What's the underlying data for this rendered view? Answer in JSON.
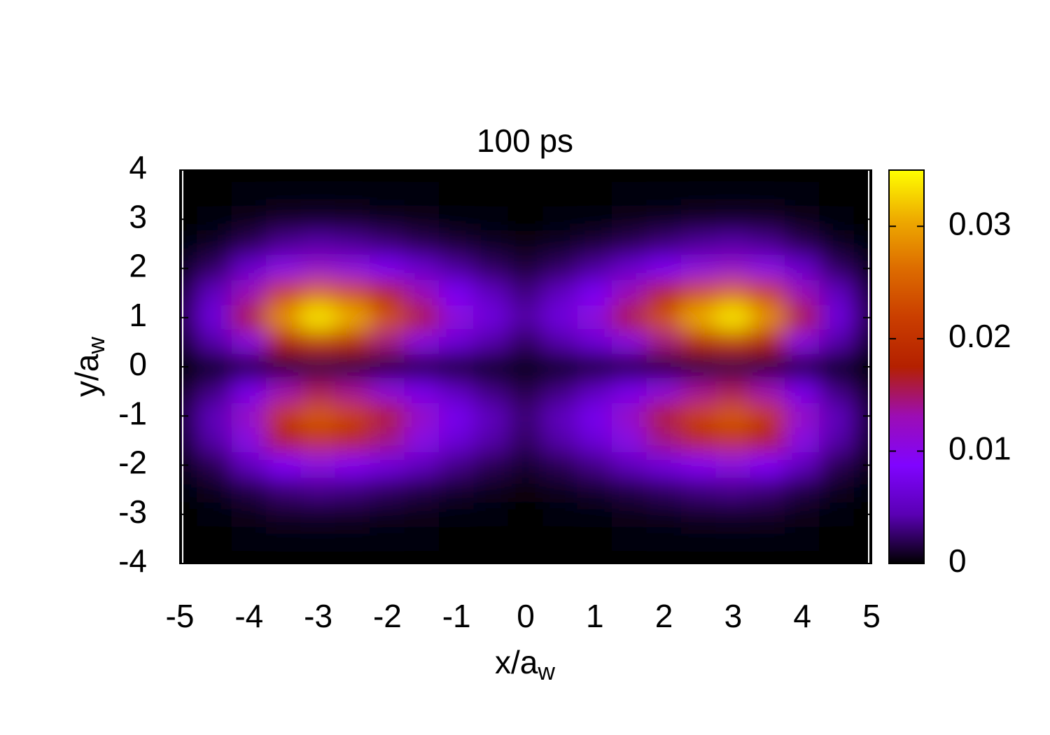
{
  "chart_data": {
    "type": "heatmap",
    "title": "100 ps",
    "x_label": {
      "text": "x/a",
      "subscript": "w"
    },
    "y_label": {
      "text": "y/a",
      "subscript": "w"
    },
    "xlim": [
      -5,
      5
    ],
    "ylim": [
      -4,
      4
    ],
    "xticks": [
      -5,
      -4,
      -3,
      -2,
      -1,
      0,
      1,
      2,
      3,
      4,
      5
    ],
    "yticks": [
      -4,
      -3,
      -2,
      -1,
      0,
      1,
      2,
      3,
      4
    ],
    "zlim": [
      0,
      0.035
    ],
    "zticks": [
      0,
      0.01,
      0.02,
      0.03
    ],
    "colormap": [
      "#000000",
      "#5a00b4",
      "#8004ff",
      "#9c0db4",
      "#b42000",
      "#ca3e00",
      "#dd6c00",
      "#eeab00",
      "#ffff00"
    ],
    "x": [
      -5,
      -4.5,
      -4,
      -3.5,
      -3,
      -2.5,
      -2,
      -1.5,
      -1,
      -0.5,
      0,
      0.5,
      1,
      1.5,
      2,
      2.5,
      3,
      3.5,
      4,
      4.5,
      5
    ],
    "y": [
      4,
      3.5,
      3,
      2.5,
      2,
      1.5,
      1,
      0.5,
      0,
      -0.5,
      -1,
      -1.5,
      -2,
      -2.5,
      -3,
      -3.5,
      -4
    ],
    "z": [
      [
        0,
        0,
        0,
        0,
        0,
        0,
        0,
        0,
        0,
        0,
        0,
        0,
        0,
        0,
        0,
        0,
        0,
        0,
        0,
        0,
        0
      ],
      [
        0,
        0.0001,
        0.0002,
        0.0003,
        0.0003,
        0.0003,
        0.0002,
        0.0002,
        0.0001,
        0.0001,
        0,
        0.0001,
        0.0001,
        0.0002,
        0.0002,
        0.0003,
        0.0003,
        0.0003,
        0.0002,
        0.0001,
        0
      ],
      [
        0.0001,
        0.0002,
        0.0005,
        0.0009,
        0.001,
        0.0009,
        0.0007,
        0.0005,
        0.0003,
        0.0002,
        0.0001,
        0.0002,
        0.0003,
        0.0005,
        0.0007,
        0.0009,
        0.001,
        0.0009,
        0.0005,
        0.0002,
        0.0001
      ],
      [
        0.0002,
        0.0008,
        0.002,
        0.0035,
        0.0041,
        0.0037,
        0.0029,
        0.002,
        0.0013,
        0.0008,
        0.0005,
        0.0008,
        0.0013,
        0.002,
        0.0029,
        0.0037,
        0.0041,
        0.0035,
        0.002,
        0.0008,
        0.0002
      ],
      [
        0.0007,
        0.0024,
        0.006,
        0.0101,
        0.0119,
        0.0107,
        0.0083,
        0.006,
        0.0038,
        0.0024,
        0.0014,
        0.0024,
        0.0038,
        0.006,
        0.0083,
        0.0107,
        0.0119,
        0.0101,
        0.006,
        0.0024,
        0.0007
      ],
      [
        0.0015,
        0.0051,
        0.0128,
        0.0217,
        0.0255,
        0.023,
        0.0179,
        0.0128,
        0.0082,
        0.0051,
        0.0031,
        0.0051,
        0.0082,
        0.0128,
        0.0179,
        0.023,
        0.0255,
        0.0217,
        0.0128,
        0.0051,
        0.0015
      ],
      [
        0.002,
        0.0068,
        0.017,
        0.0289,
        0.034,
        0.0306,
        0.0238,
        0.017,
        0.0109,
        0.0068,
        0.0041,
        0.0068,
        0.0109,
        0.017,
        0.0238,
        0.0306,
        0.034,
        0.0289,
        0.017,
        0.0068,
        0.002
      ],
      [
        0.0012,
        0.0041,
        0.0102,
        0.0173,
        0.0204,
        0.0184,
        0.0143,
        0.0102,
        0.0065,
        0.0041,
        0.0024,
        0.0041,
        0.0065,
        0.0102,
        0.0143,
        0.0184,
        0.0204,
        0.0173,
        0.0102,
        0.0041,
        0.0012
      ],
      [
        0.0001,
        0.0003,
        0.0009,
        0.0014,
        0.0017,
        0.0015,
        0.0012,
        0.0009,
        0.0005,
        0.0003,
        0.0002,
        0.0003,
        0.0005,
        0.0009,
        0.0012,
        0.0015,
        0.0017,
        0.0014,
        0.0009,
        0.0003,
        0.0001
      ],
      [
        0.0009,
        0.0031,
        0.0077,
        0.013,
        0.0153,
        0.0138,
        0.0107,
        0.0077,
        0.0049,
        0.0031,
        0.0018,
        0.0031,
        0.0049,
        0.0077,
        0.0107,
        0.0138,
        0.0153,
        0.013,
        0.0077,
        0.0031,
        0.0009
      ],
      [
        0.0015,
        0.0049,
        0.0122,
        0.0208,
        0.0245,
        0.022,
        0.0171,
        0.0122,
        0.0078,
        0.0049,
        0.0029,
        0.0049,
        0.0078,
        0.0122,
        0.0171,
        0.022,
        0.0245,
        0.0208,
        0.0122,
        0.0049,
        0.0015
      ],
      [
        0.0012,
        0.0041,
        0.0102,
        0.0173,
        0.0204,
        0.0184,
        0.0143,
        0.0102,
        0.0065,
        0.0041,
        0.0024,
        0.0041,
        0.0065,
        0.0102,
        0.0143,
        0.0184,
        0.0204,
        0.0173,
        0.0102,
        0.0041,
        0.0012
      ],
      [
        0.0006,
        0.002,
        0.0051,
        0.0087,
        0.0102,
        0.0092,
        0.0071,
        0.0051,
        0.0033,
        0.002,
        0.0012,
        0.002,
        0.0033,
        0.0051,
        0.0071,
        0.0092,
        0.0102,
        0.0087,
        0.0051,
        0.002,
        0.0006
      ],
      [
        0.0002,
        0.0007,
        0.0017,
        0.0029,
        0.0034,
        0.0031,
        0.0024,
        0.0017,
        0.0011,
        0.0007,
        0.0004,
        0.0007,
        0.0011,
        0.0017,
        0.0024,
        0.0031,
        0.0034,
        0.0029,
        0.0017,
        0.0007,
        0.0002
      ],
      [
        0.0001,
        0.0002,
        0.0005,
        0.0009,
        0.001,
        0.0009,
        0.0007,
        0.0005,
        0.0003,
        0.0002,
        0.0001,
        0.0002,
        0.0003,
        0.0005,
        0.0007,
        0.0009,
        0.001,
        0.0009,
        0.0005,
        0.0002,
        0.0001
      ],
      [
        0,
        0.0001,
        0.0002,
        0.0003,
        0.0003,
        0.0003,
        0.0002,
        0.0002,
        0.0001,
        0.0001,
        0,
        0.0001,
        0.0001,
        0.0002,
        0.0002,
        0.0003,
        0.0003,
        0.0003,
        0.0002,
        0.0001,
        0
      ],
      [
        0,
        0,
        0,
        0,
        0,
        0,
        0,
        0,
        0,
        0,
        0,
        0,
        0,
        0,
        0,
        0,
        0,
        0,
        0,
        0,
        0
      ]
    ]
  }
}
